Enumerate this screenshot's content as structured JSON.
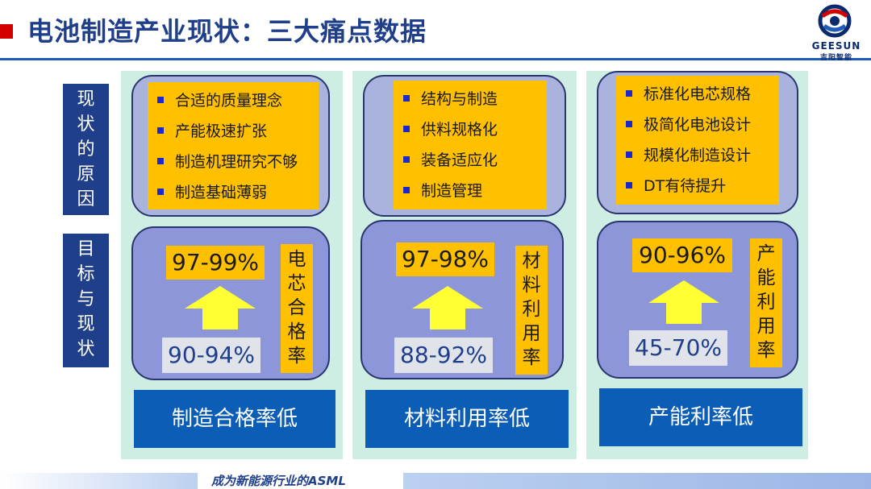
{
  "header": {
    "title": "电池制造产业现状：三大痛点数据",
    "logo": {
      "name": "GEESUN",
      "subtitle": "吉阳智能"
    }
  },
  "side_labels": {
    "reason": [
      "现",
      "状",
      "的",
      "原",
      "因"
    ],
    "target": [
      "目",
      "标",
      "与",
      "现",
      "状"
    ]
  },
  "columns": [
    {
      "reasons": [
        "合适的质量理念",
        "产能极速扩张",
        "制造机理研究不够",
        "制造基础薄弱"
      ],
      "target": "97-99%",
      "current": "90-94%",
      "metric": [
        "电",
        "芯",
        "合",
        "格",
        "率"
      ],
      "button": "制造合格率低"
    },
    {
      "reasons": [
        "结构与制造",
        "供料规格化",
        "装备适应化",
        "制造管理"
      ],
      "target": "97-98%",
      "current": "88-92%",
      "metric": [
        "材",
        "料",
        "利",
        "用",
        "率"
      ],
      "button": "材料利用率低"
    },
    {
      "reasons": [
        "标准化电芯规格",
        "极简化电池设计",
        "规模化制造设计",
        "DT有待提升"
      ],
      "target": "90-96%",
      "current": "45-70%",
      "metric": [
        "产",
        "能",
        "利",
        "用",
        "率"
      ],
      "button": "产能利率低"
    }
  ],
  "footer": {
    "slogan": "成为新能源行业的ASML"
  },
  "colors": {
    "title": "#1f3f8a",
    "accent_red": "#d40000",
    "highlight": "#ffc000",
    "button": "#0c5db6",
    "arrow": "#ffff33"
  }
}
